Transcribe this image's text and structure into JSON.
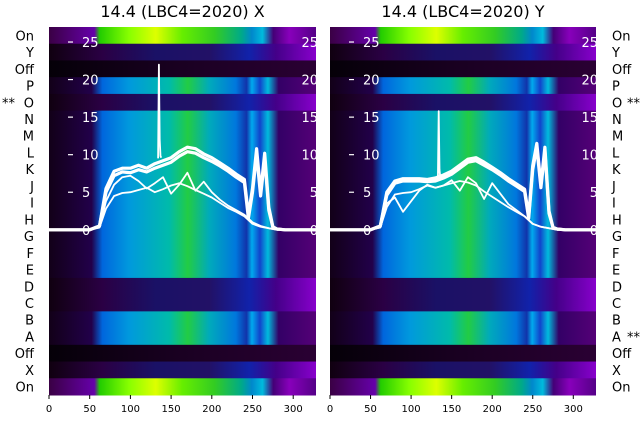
{
  "chart_data": [
    {
      "type": "heatmap",
      "title": "14.4 (LBC4=2020) X",
      "row_labels": [
        "On",
        "Y",
        "Off",
        "P",
        "O",
        "N",
        "M",
        "L",
        "K",
        "J",
        "I",
        "H",
        "G",
        "F",
        "E",
        "D",
        "C",
        "B",
        "A",
        "Off",
        "X",
        "On"
      ],
      "left_markers": {
        "O": "**"
      },
      "right_markers": {},
      "xticks": [
        0,
        50,
        100,
        150,
        200,
        250,
        300
      ],
      "xlim": [
        0,
        328
      ],
      "yticks": [
        0,
        5,
        10,
        15,
        20,
        25
      ],
      "ylim": [
        -22,
        27
      ],
      "grid": false,
      "heatmap_colormap": "nipy_spectral-like (purple, blue, cyan, green, yellow)",
      "series": [
        {
          "x": [
            0,
            50,
            62,
            70,
            80,
            90,
            100,
            110,
            120,
            130,
            140,
            150,
            160,
            170,
            180,
            190,
            200,
            210,
            220,
            230,
            240,
            245,
            250,
            255,
            260,
            265,
            270,
            275,
            280,
            290,
            300,
            310,
            320,
            328
          ],
          "y": [
            0,
            0,
            0.5,
            5.5,
            7.8,
            8.2,
            8.2,
            8.6,
            8.2,
            8.8,
            9.2,
            9.6,
            10.4,
            11.0,
            10.8,
            10.1,
            9.6,
            8.9,
            8.2,
            7.4,
            6.7,
            2.0,
            5.5,
            10.8,
            5.0,
            10.2,
            3.0,
            0.4,
            0.1,
            0,
            0,
            0,
            0,
            0
          ]
        },
        {
          "x": [
            0,
            50,
            62,
            70,
            80,
            90,
            100,
            110,
            120,
            130,
            140,
            150,
            160,
            170,
            180,
            190,
            200,
            210,
            220,
            230,
            240,
            245,
            250,
            255,
            260,
            265,
            270,
            275,
            280,
            290,
            300,
            310,
            320,
            328
          ],
          "y": [
            0,
            0,
            0.5,
            5.0,
            7.2,
            7.7,
            7.6,
            8.0,
            7.7,
            8.2,
            8.6,
            9.0,
            9.8,
            10.4,
            10.2,
            9.6,
            9.1,
            8.5,
            7.8,
            7.0,
            6.3,
            1.5,
            5.0,
            10.0,
            4.5,
            9.5,
            2.6,
            0.3,
            0.1,
            0,
            0,
            0,
            0,
            0
          ]
        },
        {
          "x": [
            0,
            50,
            62,
            70,
            80,
            90,
            100,
            110,
            120,
            130,
            140,
            150,
            160,
            170,
            180,
            190,
            200,
            210,
            220,
            230,
            240,
            250,
            260,
            270,
            280,
            300,
            328
          ],
          "y": [
            0,
            0,
            0.3,
            3.8,
            6.0,
            7.0,
            7.2,
            6.5,
            5.5,
            6.2,
            7.0,
            4.8,
            6.0,
            7.6,
            5.2,
            6.4,
            5.0,
            4.0,
            3.2,
            2.6,
            2.0,
            1.0,
            0.5,
            0.2,
            0,
            0,
            0
          ]
        },
        {
          "x": [
            0,
            50,
            62,
            70,
            80,
            90,
            100,
            110,
            120,
            130,
            140,
            150,
            160,
            170,
            180,
            190,
            200,
            210,
            220,
            230,
            240,
            250,
            260,
            270,
            280,
            300,
            328
          ],
          "y": [
            0,
            0,
            0.3,
            2.8,
            4.5,
            4.9,
            5.0,
            5.3,
            5.6,
            5.0,
            5.4,
            5.9,
            6.2,
            5.8,
            5.3,
            4.8,
            4.3,
            3.6,
            2.9,
            2.4,
            1.8,
            0.8,
            0.4,
            0.2,
            0,
            0,
            0
          ]
        },
        {
          "x": [
            134,
            135,
            136,
            137,
            138
          ],
          "y": [
            9.5,
            22.0,
            12.0,
            9.8,
            9.6
          ]
        }
      ]
    },
    {
      "type": "heatmap",
      "title": "14.4 (LBC4=2020) Y",
      "row_labels": [
        "On",
        "Y",
        "Off",
        "P",
        "O",
        "N",
        "M",
        "L",
        "K",
        "J",
        "I",
        "H",
        "G",
        "F",
        "E",
        "D",
        "C",
        "B",
        "A",
        "Off",
        "X",
        "On"
      ],
      "left_markers": {},
      "right_markers": {
        "O": "**",
        "A": "**"
      },
      "xticks": [
        0,
        50,
        100,
        150,
        200,
        250,
        300
      ],
      "xlim": [
        0,
        328
      ],
      "yticks": [
        0,
        5,
        10,
        15,
        20,
        25
      ],
      "ylim": [
        -22,
        27
      ],
      "grid": false,
      "heatmap_colormap": "nipy_spectral-like (purple, blue, cyan, green, yellow)",
      "series": [
        {
          "x": [
            0,
            50,
            62,
            70,
            80,
            90,
            100,
            110,
            120,
            130,
            140,
            150,
            160,
            170,
            180,
            190,
            200,
            210,
            220,
            230,
            240,
            245,
            250,
            255,
            260,
            265,
            270,
            275,
            280,
            290,
            300,
            328
          ],
          "y": [
            0,
            0,
            0.5,
            5.0,
            6.5,
            6.8,
            6.8,
            6.8,
            6.7,
            6.9,
            7.3,
            7.8,
            8.6,
            9.4,
            9.6,
            9.0,
            8.3,
            7.6,
            6.8,
            6.1,
            5.4,
            1.8,
            8.5,
            11.5,
            6.0,
            11.0,
            2.5,
            0.3,
            0.1,
            0,
            0,
            0
          ]
        },
        {
          "x": [
            0,
            50,
            62,
            70,
            80,
            90,
            100,
            110,
            120,
            130,
            140,
            150,
            160,
            170,
            180,
            190,
            200,
            210,
            220,
            230,
            240,
            245,
            250,
            255,
            260,
            265,
            270,
            275,
            280,
            290,
            300,
            328
          ],
          "y": [
            0,
            0,
            0.5,
            4.6,
            6.2,
            6.5,
            6.5,
            6.5,
            6.4,
            6.5,
            6.9,
            7.4,
            8.2,
            9.0,
            9.2,
            8.6,
            8.0,
            7.3,
            6.5,
            5.8,
            5.1,
            1.5,
            8.0,
            11.0,
            5.6,
            10.5,
            2.2,
            0.3,
            0.1,
            0,
            0,
            0
          ]
        },
        {
          "x": [
            0,
            50,
            62,
            70,
            80,
            90,
            100,
            110,
            120,
            130,
            140,
            150,
            160,
            170,
            180,
            190,
            200,
            210,
            220,
            230,
            240,
            250,
            260,
            270,
            280,
            300,
            328
          ],
          "y": [
            0,
            0,
            0.3,
            3.5,
            4.3,
            2.4,
            3.8,
            5.2,
            6.0,
            5.6,
            5.9,
            6.6,
            5.2,
            7.0,
            6.2,
            4.1,
            6.2,
            4.8,
            3.4,
            2.6,
            1.8,
            0.8,
            0.4,
            0.2,
            0,
            0,
            0
          ]
        },
        {
          "x": [
            0,
            50,
            62,
            70,
            80,
            90,
            100,
            110,
            120,
            130,
            140,
            150,
            160,
            170,
            180,
            190,
            200,
            210,
            220,
            230,
            240,
            250,
            260,
            270,
            280,
            300,
            328
          ],
          "y": [
            0,
            0,
            0.3,
            3.0,
            4.7,
            4.9,
            5.0,
            5.4,
            5.9,
            5.6,
            5.9,
            6.2,
            6.5,
            6.3,
            5.9,
            5.1,
            4.4,
            3.7,
            3.0,
            2.4,
            1.8,
            0.8,
            0.4,
            0.2,
            0,
            0,
            0
          ]
        },
        {
          "x": [
            133,
            134,
            135,
            136,
            137
          ],
          "y": [
            6.8,
            15.8,
            8.0,
            6.9,
            6.9
          ]
        }
      ]
    }
  ]
}
